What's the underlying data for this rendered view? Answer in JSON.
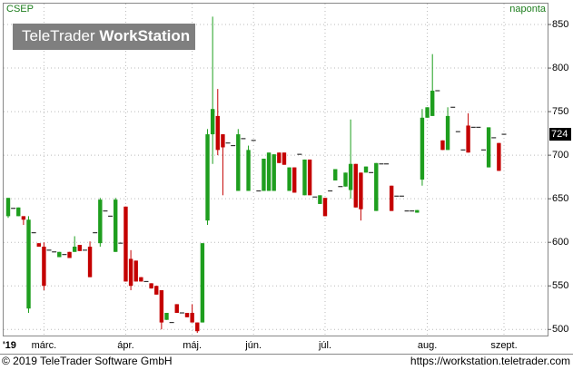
{
  "chart_data": {
    "type": "candlestick",
    "symbol": "CSEP",
    "interval": "naponta",
    "logo_left": "TeleTrader",
    "logo_right": "WorkStation",
    "copyright": "© 2019 TeleTrader Software GmbH",
    "url": "https://workstation.teletrader.com",
    "last_value": 724,
    "up_color": "#1e9e1e",
    "down_color": "#c40000",
    "flat_color": "#333333",
    "grid": true,
    "ylim": [
      493,
      875
    ],
    "yticks": [
      500,
      550,
      600,
      650,
      700,
      750,
      800,
      850
    ],
    "categories": [
      "'19",
      null,
      null,
      null,
      null,
      null,
      null,
      "márc.",
      null,
      null,
      null,
      null,
      null,
      null,
      null,
      null,
      null,
      null,
      null,
      null,
      null,
      null,
      null,
      "ápr.",
      null,
      null,
      null,
      null,
      null,
      null,
      null,
      null,
      null,
      null,
      null,
      null,
      "máj.",
      null,
      null,
      null,
      null,
      null,
      null,
      null,
      null,
      null,
      null,
      null,
      "jún.",
      null,
      null,
      null,
      null,
      null,
      null,
      null,
      null,
      null,
      null,
      null,
      null,
      null,
      "júl.",
      null,
      null,
      null,
      null,
      null,
      null,
      null,
      null,
      null,
      null,
      null,
      null,
      null,
      null,
      null,
      null,
      null,
      null,
      null,
      "aug.",
      null,
      null,
      null,
      null,
      null,
      null,
      null,
      null,
      null,
      null,
      null,
      null,
      null,
      null,
      "szept."
    ],
    "open": [
      630,
      639,
      630,
      630,
      524,
      611,
      599,
      595,
      591,
      589,
      583,
      586,
      589,
      589,
      597,
      591,
      595,
      611,
      599,
      636,
      630,
      589,
      599,
      641,
      581,
      579,
      560,
      555,
      553,
      550,
      545,
      511,
      508,
      529,
      519,
      519,
      519,
      508,
      508,
      625,
      724,
      745,
      724,
      714,
      711,
      659,
      719,
      659,
      717,
      659,
      659,
      659,
      659,
      703,
      703,
      659,
      686,
      701,
      654,
      695,
      652,
      644,
      651,
      659,
      671,
      664,
      664,
      660,
      690,
      680,
      680,
      680,
      636,
      690,
      690,
      665,
      653,
      653,
      636,
      636,
      634,
      672,
      743,
      745,
      774,
      717,
      706,
      755,
      727,
      706,
      734,
      732,
      732,
      706,
      686,
      720,
      714,
      724
    ],
    "high": [
      651,
      639,
      640,
      630,
      630,
      611,
      599,
      600,
      591,
      589,
      589,
      586,
      589,
      607,
      597,
      591,
      601,
      611,
      651,
      636,
      630,
      651,
      599,
      641,
      591,
      579,
      560,
      555,
      553,
      550,
      545,
      519,
      508,
      529,
      519,
      519,
      529,
      508,
      599,
      730,
      859,
      776,
      724,
      714,
      711,
      730,
      719,
      711,
      717,
      659,
      696,
      703,
      701,
      703,
      703,
      686,
      686,
      701,
      695,
      695,
      652,
      654,
      651,
      659,
      684,
      664,
      680,
      741,
      690,
      680,
      687,
      680,
      691,
      690,
      690,
      665,
      653,
      653,
      636,
      636,
      637,
      753,
      755,
      816,
      774,
      717,
      755,
      755,
      727,
      706,
      748,
      732,
      732,
      706,
      732,
      720,
      714,
      724
    ],
    "low": [
      628,
      639,
      630,
      620,
      519,
      611,
      595,
      545,
      591,
      589,
      583,
      586,
      582,
      589,
      590,
      591,
      560,
      611,
      595,
      636,
      630,
      589,
      599,
      555,
      545,
      555,
      555,
      555,
      547,
      540,
      500,
      511,
      508,
      519,
      519,
      514,
      508,
      496,
      508,
      620,
      690,
      700,
      654,
      714,
      711,
      659,
      719,
      659,
      717,
      659,
      659,
      659,
      659,
      691,
      689,
      659,
      657,
      701,
      654,
      654,
      652,
      644,
      630,
      659,
      671,
      664,
      664,
      650,
      640,
      625,
      680,
      680,
      636,
      690,
      690,
      636,
      653,
      653,
      636,
      636,
      634,
      665,
      743,
      745,
      774,
      706,
      706,
      755,
      727,
      706,
      703,
      732,
      732,
      706,
      686,
      720,
      682,
      724
    ],
    "close": [
      651,
      639,
      640,
      626,
      626,
      611,
      595,
      550,
      591,
      589,
      589,
      586,
      582,
      595,
      590,
      591,
      560,
      611,
      649,
      636,
      630,
      649,
      599,
      555,
      550,
      555,
      555,
      555,
      547,
      540,
      508,
      519,
      508,
      519,
      519,
      514,
      508,
      498,
      599,
      724,
      753,
      706,
      709,
      714,
      711,
      724,
      719,
      706,
      717,
      659,
      696,
      703,
      701,
      691,
      689,
      686,
      657,
      701,
      695,
      654,
      652,
      654,
      630,
      659,
      684,
      664,
      680,
      690,
      640,
      638,
      687,
      680,
      691,
      690,
      690,
      636,
      653,
      653,
      636,
      636,
      637,
      743,
      755,
      774,
      774,
      706,
      745,
      755,
      727,
      706,
      703,
      732,
      732,
      706,
      732,
      720,
      682,
      724
    ]
  }
}
